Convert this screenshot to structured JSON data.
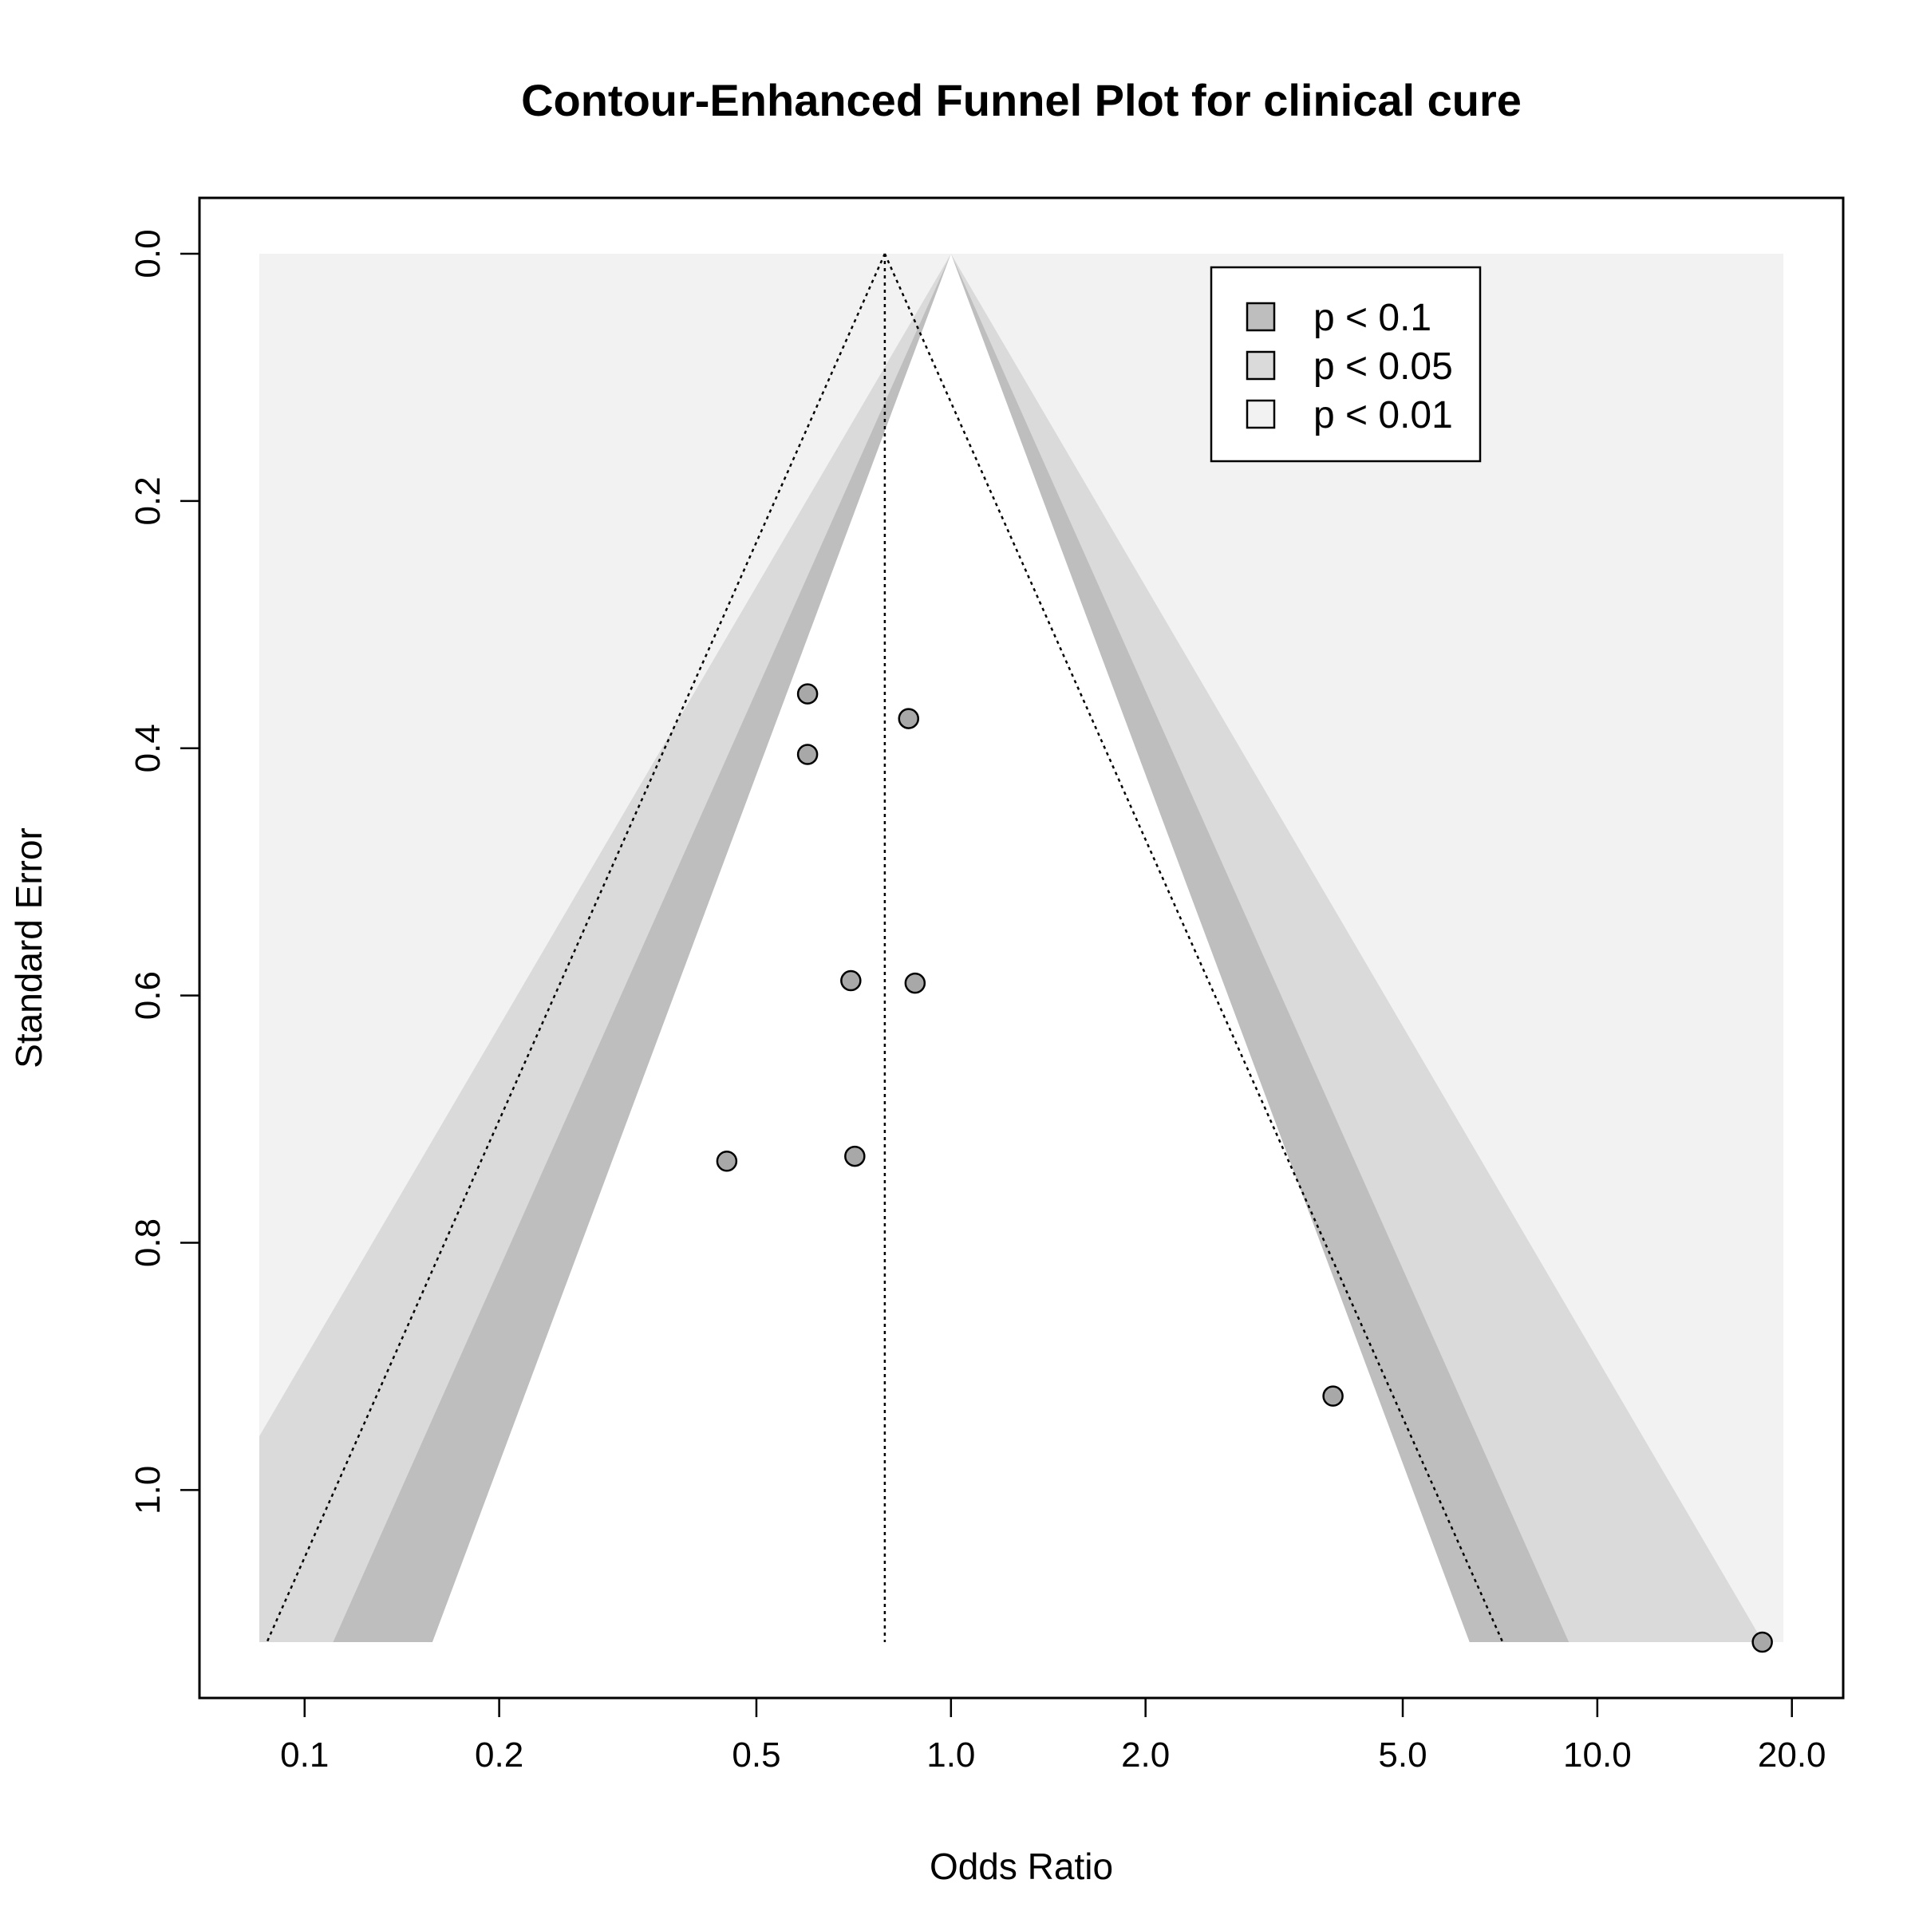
{
  "chart_data": {
    "type": "scatter",
    "title": "Contour-Enhanced Funnel Plot for clinical cure",
    "xlabel": "Odds Ratio",
    "ylabel": "Standard Error",
    "x_scale": "log",
    "y_reversed": true,
    "xlim": [
      0.0851,
      19.4
    ],
    "ylim": [
      0,
      1.123
    ],
    "x_ticks": [
      0.1,
      0.2,
      0.5,
      1.0,
      2.0,
      5.0,
      10.0,
      20.0
    ],
    "x_tick_labels": [
      "0.1",
      "0.2",
      "0.5",
      "1.0",
      "2.0",
      "5.0",
      "10.0",
      "20.0"
    ],
    "y_ticks": [
      0.0,
      0.2,
      0.4,
      0.6,
      0.8,
      1.0
    ],
    "y_tick_labels": [
      "0.0",
      "0.2",
      "0.4",
      "0.6",
      "0.8",
      "1.0"
    ],
    "contour_center": 1.0,
    "pooled_estimate": 0.79,
    "contours": [
      {
        "label": "p < 0.1",
        "z": 1.645,
        "color": "#bebebe"
      },
      {
        "label": "p < 0.05",
        "z": 1.96,
        "color": "#dadada"
      },
      {
        "label": "p < 0.01",
        "z": 2.576,
        "color": "#f2f2f2"
      }
    ],
    "points": [
      {
        "x": 0.6,
        "se": 0.356
      },
      {
        "x": 0.86,
        "se": 0.376
      },
      {
        "x": 0.6,
        "se": 0.405
      },
      {
        "x": 0.7,
        "se": 0.588
      },
      {
        "x": 0.88,
        "se": 0.59
      },
      {
        "x": 0.45,
        "se": 0.734
      },
      {
        "x": 0.71,
        "se": 0.73
      },
      {
        "x": 3.9,
        "se": 0.924
      },
      {
        "x": 18.0,
        "se": 1.123
      }
    ],
    "point_fill": "#a8a8a8",
    "legend": {
      "position": "top-right",
      "entries": [
        "p < 0.1",
        "p < 0.05",
        "p < 0.01"
      ]
    },
    "grid": false
  }
}
